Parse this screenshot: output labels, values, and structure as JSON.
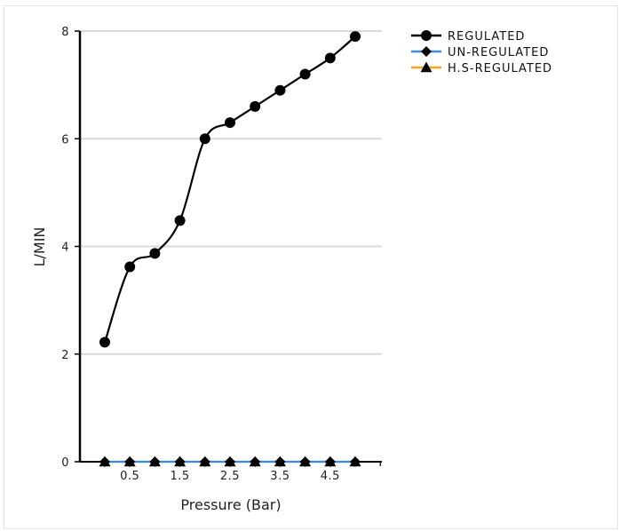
{
  "chart_data": {
    "type": "line",
    "xlabel": "Pressure (Bar)",
    "ylabel": "L/MIN",
    "xlim": [
      -0.5,
      5.5
    ],
    "ylim": [
      0,
      8
    ],
    "x_tick_labels": [
      "0.5",
      "1.5",
      "2.5",
      "3.5",
      "4.5"
    ],
    "y_tick_labels": [
      "0",
      "2",
      "4",
      "6",
      "8"
    ],
    "grid": "horizontal",
    "legend_position": "top-right",
    "series": [
      {
        "name": "REGULATED",
        "color": "#000000",
        "marker": "circle",
        "x": [
          0,
          0.5,
          1,
          1.5,
          2,
          2.5,
          3,
          3.5,
          4,
          4.5,
          5
        ],
        "y": [
          2.22,
          3.62,
          3.87,
          4.48,
          6.0,
          6.3,
          6.6,
          6.9,
          7.2,
          7.5,
          7.9
        ]
      },
      {
        "name": "UN-REGULATED",
        "color": "#3b8beb",
        "marker": "diamond",
        "x": [
          0,
          0.5,
          1,
          1.5,
          2,
          2.5,
          3,
          3.5,
          4,
          4.5,
          5
        ],
        "y": [
          0,
          0,
          0,
          0,
          0,
          0,
          0,
          0,
          0,
          0,
          0
        ]
      },
      {
        "name": "H.S-REGULATED",
        "color": "#f5a623",
        "marker": "triangle",
        "x": [
          0,
          0.5,
          1,
          1.5,
          2,
          2.5,
          3,
          3.5,
          4,
          4.5,
          5
        ],
        "y": [
          0,
          0,
          0,
          0,
          0,
          0,
          0,
          0,
          0,
          0,
          0
        ]
      }
    ]
  }
}
